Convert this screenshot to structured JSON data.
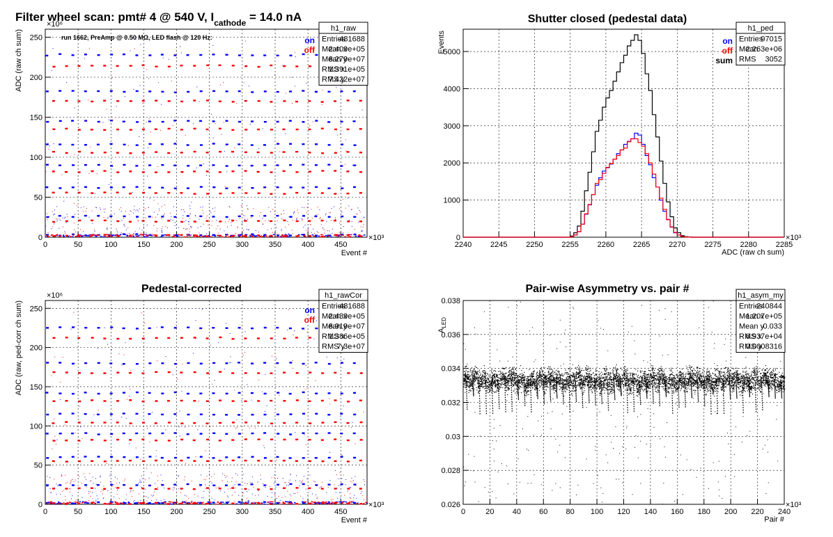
{
  "chart_data": [
    {
      "type": "scatter",
      "title_main": "Filter wheel scan: pmt#   4 @   540 V, I",
      "title_sub": "cathode",
      "title_tail": " = 14.0 nA",
      "annotation": "run 1662, PreAmp @ 0.50 MΩ, LED flash @  120 Hz:",
      "xlabel": "Event #",
      "ylabel": "ADC (raw ch sum)",
      "x_multiplier": "×10³",
      "y_multiplier": "×10⁶",
      "xlim": [
        0,
        490
      ],
      "ylim": [
        0,
        260
      ],
      "x_ticks": [
        0,
        50,
        100,
        150,
        200,
        250,
        300,
        350,
        400,
        450
      ],
      "y_ticks": [
        0,
        50,
        100,
        150,
        200,
        250
      ],
      "grid": true,
      "legend": {
        "position": "top-right",
        "entries": [
          {
            "label": "on",
            "color": "#0000ff"
          },
          {
            "label": "off",
            "color": "#ff0000"
          }
        ]
      },
      "stats": {
        "name": "h1_raw",
        "rows": [
          [
            "Entries",
            "481688"
          ],
          [
            "Mean x",
            "2.409e+05"
          ],
          [
            "Mean y",
            "8.279e+07"
          ],
          [
            "RMS x",
            "1.391e+05"
          ],
          [
            "RMS y",
            "7.422e+07"
          ]
        ]
      },
      "series": [
        {
          "name": "on",
          "levels": [
            228,
            182,
            145,
            116,
            90,
            62,
            26,
            3
          ]
        },
        {
          "name": "off",
          "levels": [
            214,
            170,
            135,
            106,
            82,
            55,
            20,
            2
          ]
        }
      ],
      "period": 19.5
    },
    {
      "type": "bar",
      "title": "Shutter closed (pedestal data)",
      "xlabel": "ADC (raw ch sum)",
      "ylabel": "Events",
      "x_multiplier": "×10³",
      "xlim": [
        2240,
        2285
      ],
      "ylim": [
        0,
        5600
      ],
      "x_ticks": [
        2240,
        2245,
        2250,
        2255,
        2260,
        2265,
        2270,
        2275,
        2280,
        2285
      ],
      "y_ticks": [
        0,
        1000,
        2000,
        3000,
        4000,
        5000
      ],
      "grid": true,
      "legend": {
        "position": "top-right",
        "entries": [
          {
            "label": "on",
            "color": "#0000ff"
          },
          {
            "label": "off",
            "color": "#ff0000"
          },
          {
            "label": "sum",
            "color": "#000000"
          }
        ]
      },
      "stats": {
        "name": "h1_ped",
        "rows": [
          [
            "Entries",
            "97015"
          ],
          [
            "Mean",
            "2.263e+06"
          ],
          [
            "RMS",
            "3052"
          ]
        ]
      },
      "bins": [
        2255,
        2255.5,
        2256,
        2256.5,
        2257,
        2257.5,
        2258,
        2258.5,
        2259,
        2259.5,
        2260,
        2260.5,
        2261,
        2261.5,
        2262,
        2262.5,
        2263,
        2263.5,
        2264,
        2264.5,
        2265,
        2265.5,
        2266,
        2266.5,
        2267,
        2267.5,
        2268,
        2268.5,
        2269,
        2269.5,
        2270,
        2270.5,
        2271,
        2271.5,
        2272
      ],
      "series": [
        {
          "name": "sum",
          "values": [
            30,
            120,
            300,
            700,
            1250,
            1750,
            2300,
            2850,
            3150,
            3500,
            3750,
            3950,
            4200,
            4450,
            4700,
            4900,
            5150,
            5300,
            5450,
            5300,
            4950,
            4400,
            3950,
            3300,
            2700,
            2050,
            1450,
            950,
            550,
            250,
            120,
            40,
            15,
            5,
            0
          ]
        },
        {
          "name": "on",
          "values": [
            15,
            60,
            150,
            350,
            620,
            870,
            1150,
            1400,
            1600,
            1780,
            1870,
            1970,
            2100,
            2250,
            2350,
            2500,
            2580,
            2650,
            2800,
            2750,
            2500,
            2200,
            1950,
            1600,
            1350,
            1000,
            700,
            480,
            270,
            120,
            60,
            20,
            8,
            2,
            0
          ]
        },
        {
          "name": "off",
          "values": [
            15,
            60,
            150,
            350,
            630,
            880,
            1150,
            1450,
            1550,
            1720,
            1880,
            1980,
            2100,
            2200,
            2350,
            2400,
            2570,
            2650,
            2650,
            2550,
            2450,
            2250,
            2000,
            1700,
            1350,
            1050,
            750,
            470,
            280,
            130,
            60,
            20,
            7,
            3,
            0
          ]
        }
      ]
    },
    {
      "type": "scatter",
      "title": "Pedestal-corrected",
      "xlabel": "Event #",
      "ylabel": "ADC (raw, ped-corr ch sum)",
      "x_multiplier": "×10³",
      "y_multiplier": "×10⁶",
      "xlim": [
        0,
        490
      ],
      "ylim": [
        0,
        260
      ],
      "x_ticks": [
        0,
        50,
        100,
        150,
        200,
        250,
        300,
        350,
        400,
        450
      ],
      "y_ticks": [
        0,
        50,
        100,
        150,
        200,
        250
      ],
      "grid": true,
      "legend": {
        "position": "top-right",
        "entries": [
          {
            "label": "on",
            "color": "#0000ff"
          },
          {
            "label": "off",
            "color": "#ff0000"
          }
        ]
      },
      "stats": {
        "name": "h1_rawCor",
        "rows": [
          [
            "Entries",
            "481688"
          ],
          [
            "Mean x",
            "2.439e+05"
          ],
          [
            "Mean y",
            "8.919e+07"
          ],
          [
            "RMS x",
            "1.386e+05"
          ],
          [
            "RMS y",
            "7.3e+07"
          ]
        ]
      },
      "series": [
        {
          "name": "on",
          "levels": [
            225,
            180,
            142,
            115,
            90,
            60,
            25,
            2
          ]
        },
        {
          "name": "off",
          "levels": [
            212,
            168,
            132,
            104,
            82,
            55,
            20,
            1
          ]
        }
      ],
      "period": 19.5
    },
    {
      "type": "scatter",
      "title": "Pair-wise Asymmetry vs. pair #",
      "xlabel": "Pair #",
      "ylabel_main": "A",
      "ylabel_sub": "LED",
      "x_multiplier": "×10³",
      "xlim": [
        0,
        240
      ],
      "ylim": [
        0.026,
        0.038
      ],
      "x_ticks": [
        0,
        20,
        40,
        60,
        80,
        100,
        120,
        140,
        160,
        180,
        200,
        220,
        240
      ],
      "y_ticks": [
        "0.026",
        "0.028",
        "0.03",
        "0.032",
        "0.034",
        "0.036",
        "0.038"
      ],
      "grid": true,
      "stats": {
        "name": "h1_asym_my",
        "rows": [
          [
            "Entries",
            "240844"
          ],
          [
            "Mean x",
            "1.207e+05"
          ],
          [
            "Mean y",
            "0.033"
          ],
          [
            "RMS x",
            "6.937e+04"
          ],
          [
            "RMS y",
            "0.0008316"
          ]
        ]
      },
      "center": 0.0333,
      "spread": 0.0005,
      "low_excursion": 0.0312
    }
  ]
}
